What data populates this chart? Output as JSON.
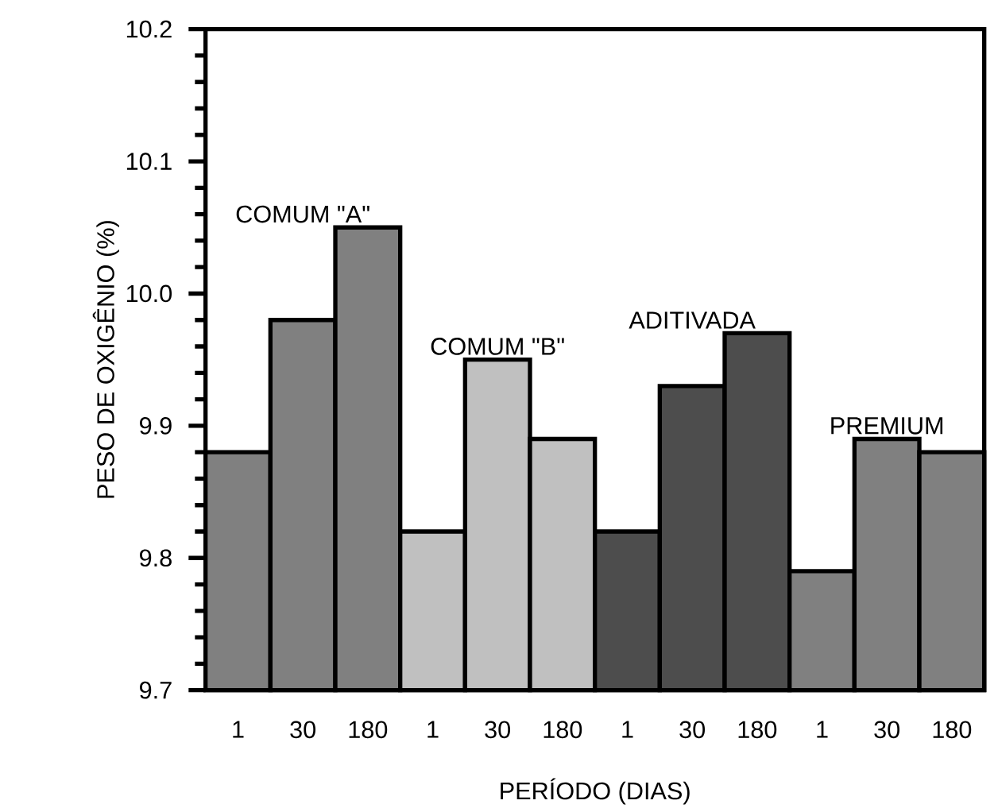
{
  "chart_data": {
    "type": "bar",
    "xlabel": "PERÍODO (DIAS)",
    "ylabel": "PESO DE OXIGÊNIO (%)",
    "categories": [
      "1",
      "30",
      "180",
      "1",
      "30",
      "180",
      "1",
      "30",
      "180",
      "1",
      "30",
      "180"
    ],
    "series": [
      {
        "name": "COMUM \"A\"",
        "color": "#808080",
        "values": [
          9.88,
          9.98,
          10.05,
          null,
          null,
          null,
          null,
          null,
          null,
          null,
          null,
          null
        ]
      },
      {
        "name": "COMUM \"B\"",
        "color": "#c0c0c0",
        "values": [
          null,
          null,
          null,
          9.82,
          9.95,
          9.89,
          null,
          null,
          null,
          null,
          null,
          null
        ]
      },
      {
        "name": "ADITIVADA",
        "color": "#4d4d4d",
        "values": [
          null,
          null,
          null,
          null,
          null,
          null,
          9.82,
          9.93,
          9.97,
          null,
          null,
          null
        ]
      },
      {
        "name": "PREMIUM",
        "color": "#808080",
        "values": [
          null,
          null,
          null,
          null,
          null,
          null,
          null,
          null,
          null,
          9.79,
          9.89,
          9.88
        ]
      }
    ],
    "ylim": [
      9.7,
      10.2
    ],
    "yticks": [
      9.7,
      9.8,
      9.9,
      {
        "value": 10.0,
        "label": "10.0"
      },
      10.1,
      10.2
    ]
  }
}
